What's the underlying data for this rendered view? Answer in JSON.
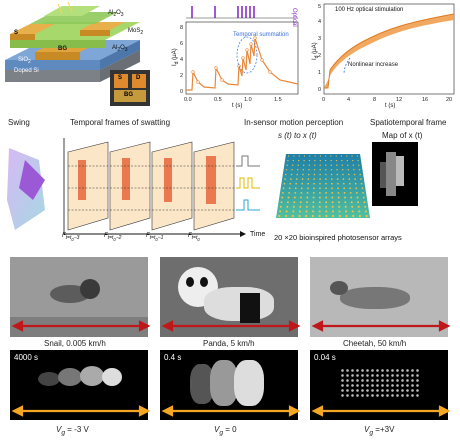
{
  "device": {
    "labels": {
      "al2o3_top": "Al$_2$O$_3$",
      "mos2": "MoS$_2$",
      "s": "S",
      "bg": "BG",
      "al2o3_bot": "Al$_2$O$_3$",
      "sio2": "SiO$_2$",
      "doped_si": "Doped Si",
      "d": "D"
    }
  },
  "plot1": {
    "ylabel": "I_d (μA)",
    "xlabel": "t (s)",
    "optical": "Optical",
    "annotation": "Temporal summation",
    "xticks": [
      "0.0",
      "0.5",
      "1.0",
      "1.5"
    ],
    "yticks": [
      "0",
      "2",
      "4",
      "6",
      "8"
    ]
  },
  "plot2": {
    "title": "100 Hz optical stimulation",
    "annotation": "Nonlinear increase",
    "ylabel": "I_d (μA)",
    "xlabel": "t (s)",
    "xticks": [
      "0",
      "4",
      "8",
      "12",
      "16",
      "20"
    ],
    "yticks": [
      "0",
      "1",
      "2",
      "3",
      "4",
      "5"
    ]
  },
  "middle": {
    "swing": "Swing",
    "frames_title": "Temporal frames of swatting",
    "in_sensor": "In-sensor motion perception",
    "s_to_x": "s (t)   to x (t)",
    "spatio": "Spatiotemporal frame",
    "map": "Map of x (t)",
    "array_caption": "20 ×20 bioinspired photosensor arrays",
    "time": "Time",
    "frame_labels": [
      "F_{t=t0-3}",
      "F_{t=t0-2}",
      "F_{t=t0-1}",
      "F_{t=t0}"
    ]
  },
  "animals": [
    {
      "caption": "Snail, 0.005 km/h",
      "time": "4000 s",
      "vg": "= -3 V"
    },
    {
      "caption": "Panda, 5 km/h",
      "time": "0.4 s",
      "vg": "= 0"
    },
    {
      "caption": "Cheetah, 50 km/h",
      "time": "0.04 s",
      "vg": "=+3V"
    }
  ],
  "vg_prefix": "V",
  "vg_sub": "g"
}
